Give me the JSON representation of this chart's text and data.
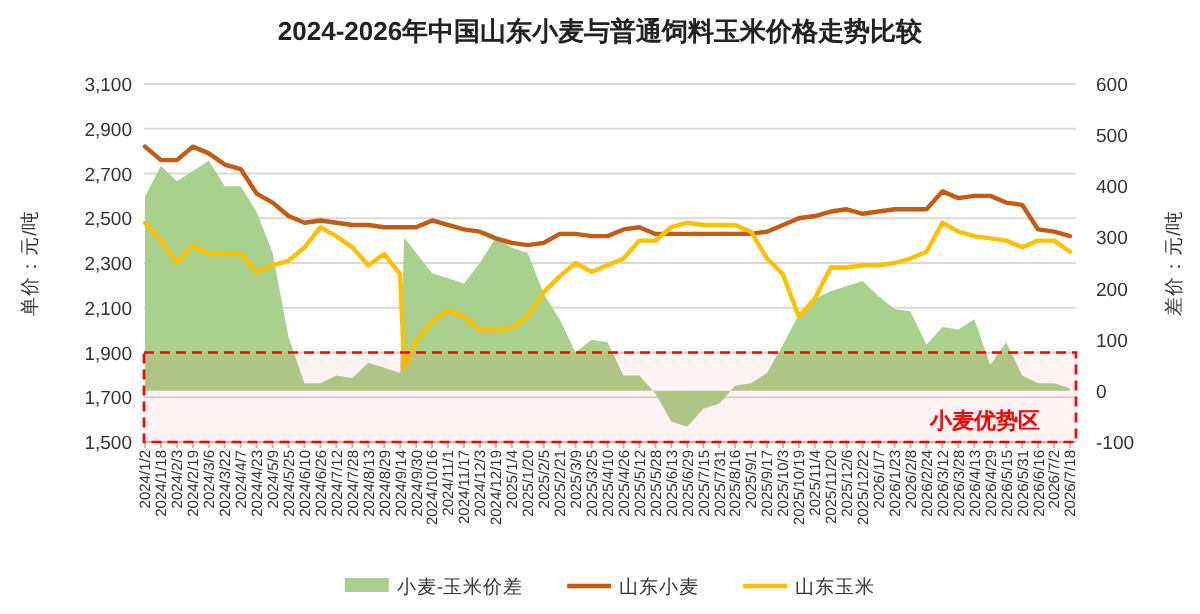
{
  "chart_data": {
    "type": "line",
    "title": "2024-2026年中国山东小麦与普通饲料玉米价格走势比较",
    "ylabel": "单价：元/吨",
    "y2label": "差价：元/吨",
    "xlim": [
      "2024-01-01",
      "2026-07-24"
    ],
    "ylim": [
      1500,
      3100
    ],
    "yticks": [
      {
        "value": 1500,
        "label": "1,500"
      },
      {
        "value": 1700,
        "label": "1,700"
      },
      {
        "value": 1900,
        "label": "1,900"
      },
      {
        "value": 2100,
        "label": "2,100"
      },
      {
        "value": 2300,
        "label": "2,300"
      },
      {
        "value": 2500,
        "label": "2,500"
      },
      {
        "value": 2700,
        "label": "2,700"
      },
      {
        "value": 2900,
        "label": "2,900"
      },
      {
        "value": 3100,
        "label": "3,100"
      }
    ],
    "y2lim": [
      -100,
      600
    ],
    "y2ticks": [
      -100,
      0,
      100,
      200,
      300,
      400,
      500,
      600
    ],
    "xticks": [
      {
        "value": "2024-01-02",
        "label": "2024/1/2"
      },
      {
        "value": "2024-01-18",
        "label": "2024/1/18"
      },
      {
        "value": "2024-02-03",
        "label": "2024/2/3"
      },
      {
        "value": "2024-02-19",
        "label": "2024/2/19"
      },
      {
        "value": "2024-03-06",
        "label": "2024/3/6"
      },
      {
        "value": "2024-03-22",
        "label": "2024/3/22"
      },
      {
        "value": "2024-04-07",
        "label": "2024/4/7"
      },
      {
        "value": "2024-04-23",
        "label": "2024/4/23"
      },
      {
        "value": "2024-05-09",
        "label": "2024/5/9"
      },
      {
        "value": "2024-05-25",
        "label": "2024/5/25"
      },
      {
        "value": "2024-06-10",
        "label": "2024/6/10"
      },
      {
        "value": "2024-06-26",
        "label": "2024/6/26"
      },
      {
        "value": "2024-07-12",
        "label": "2024/7/12"
      },
      {
        "value": "2024-07-28",
        "label": "2024/7/28"
      },
      {
        "value": "2024-08-13",
        "label": "2024/8/13"
      },
      {
        "value": "2024-08-29",
        "label": "2024/8/29"
      },
      {
        "value": "2024-09-14",
        "label": "2024/9/14"
      },
      {
        "value": "2024-09-30",
        "label": "2024/9/30"
      },
      {
        "value": "2024-10-16",
        "label": "2024/10/16"
      },
      {
        "value": "2024-11-01",
        "label": "2024/11/1"
      },
      {
        "value": "2024-11-17",
        "label": "2024/11/17"
      },
      {
        "value": "2024-12-03",
        "label": "2024/12/3"
      },
      {
        "value": "2024-12-19",
        "label": "2024/12/19"
      },
      {
        "value": "2025-01-04",
        "label": "2025/1/4"
      },
      {
        "value": "2025-01-20",
        "label": "2025/1/20"
      },
      {
        "value": "2025-02-05",
        "label": "2025/2/5"
      },
      {
        "value": "2025-02-21",
        "label": "2025/2/21"
      },
      {
        "value": "2025-03-09",
        "label": "2025/3/9"
      },
      {
        "value": "2025-03-25",
        "label": "2025/3/25"
      },
      {
        "value": "2025-04-10",
        "label": "2025/4/10"
      },
      {
        "value": "2025-04-26",
        "label": "2025/4/26"
      },
      {
        "value": "2025-05-12",
        "label": "2025/5/12"
      },
      {
        "value": "2025-05-28",
        "label": "2025/5/28"
      },
      {
        "value": "2025-06-13",
        "label": "2025/6/13"
      },
      {
        "value": "2025-06-29",
        "label": "2025/6/29"
      },
      {
        "value": "2025-07-15",
        "label": "2025/7/15"
      },
      {
        "value": "2025-07-31",
        "label": "2025/7/31"
      },
      {
        "value": "2025-08-16",
        "label": "2025/8/16"
      },
      {
        "value": "2025-09-01",
        "label": "2025/9/1"
      },
      {
        "value": "2025-09-17",
        "label": "2025/9/17"
      },
      {
        "value": "2025-10-03",
        "label": "2025/10/3"
      },
      {
        "value": "2025-10-19",
        "label": "2025/10/19"
      },
      {
        "value": "2025-11-04",
        "label": "2025/11/4"
      },
      {
        "value": "2025-11-20",
        "label": "2025/11/20"
      },
      {
        "value": "2025-12-06",
        "label": "2025/12/6"
      },
      {
        "value": "2025-12-22",
        "label": "2025/12/22"
      },
      {
        "value": "2026-01-07",
        "label": "2026/1/7"
      },
      {
        "value": "2026-01-23",
        "label": "2026/1/23"
      },
      {
        "value": "2026-02-08",
        "label": "2026/2/8"
      },
      {
        "value": "2026-02-24",
        "label": "2026/2/24"
      },
      {
        "value": "2026-03-12",
        "label": "2026/3/12"
      },
      {
        "value": "2026-03-28",
        "label": "2026/3/28"
      },
      {
        "value": "2026-04-13",
        "label": "2026/4/13"
      },
      {
        "value": "2026-04-29",
        "label": "2026/4/29"
      },
      {
        "value": "2026-05-15",
        "label": "2026/5/15"
      },
      {
        "value": "2026-05-31",
        "label": "2026/5/31"
      },
      {
        "value": "2026-06-16",
        "label": "2026/6/16"
      },
      {
        "value": "2026-07-02",
        "label": "2026/7/2"
      },
      {
        "value": "2026-07-18",
        "label": "2026/7/18"
      }
    ],
    "x": [
      "2024-01-02",
      "2024-01-18",
      "2024-02-03",
      "2024-02-19",
      "2024-03-06",
      "2024-03-22",
      "2024-04-07",
      "2024-04-23",
      "2024-05-09",
      "2024-05-25",
      "2024-06-10",
      "2024-06-26",
      "2024-07-12",
      "2024-07-28",
      "2024-08-13",
      "2024-08-29",
      "2024-09-14",
      "2024-09-18",
      "2024-09-30",
      "2024-10-16",
      "2024-11-01",
      "2024-11-17",
      "2024-12-03",
      "2024-12-19",
      "2025-01-04",
      "2025-01-20",
      "2025-02-05",
      "2025-02-21",
      "2025-03-09",
      "2025-03-25",
      "2025-04-10",
      "2025-04-26",
      "2025-05-12",
      "2025-05-28",
      "2025-06-13",
      "2025-06-29",
      "2025-07-15",
      "2025-07-31",
      "2025-08-16",
      "2025-09-01",
      "2025-09-17",
      "2025-10-03",
      "2025-10-19",
      "2025-11-04",
      "2025-11-20",
      "2025-12-06",
      "2025-12-22",
      "2026-01-07",
      "2026-01-23",
      "2026-02-08",
      "2026-02-24",
      "2026-03-12",
      "2026-03-28",
      "2026-04-13",
      "2026-04-29",
      "2026-05-15",
      "2026-05-31",
      "2026-06-16",
      "2026-07-02",
      "2026-07-18"
    ],
    "series": [
      {
        "name": "小麦-玉米价差",
        "type": "area",
        "axis": "y2",
        "color": "#a9d18e",
        "values": [
          380,
          440,
          410,
          430,
          450,
          400,
          400,
          350,
          270,
          105,
          15,
          15,
          30,
          25,
          55,
          45,
          35,
          300,
          270,
          230,
          220,
          210,
          250,
          300,
          280,
          270,
          190,
          140,
          75,
          100,
          95,
          30,
          30,
          -5,
          -60,
          -70,
          -35,
          -25,
          10,
          15,
          35,
          90,
          150,
          180,
          195,
          205,
          215,
          185,
          160,
          155,
          90,
          125,
          120,
          140,
          50,
          95,
          30,
          15,
          15,
          5
        ]
      },
      {
        "name": "山东小麦",
        "color": "#c55a11",
        "values": [
          2820,
          2760,
          2760,
          2820,
          2790,
          2740,
          2720,
          2610,
          2570,
          2510,
          2480,
          2490,
          2480,
          2470,
          2470,
          2460,
          2460,
          2460,
          2460,
          2490,
          2470,
          2450,
          2440,
          2410,
          2390,
          2380,
          2390,
          2430,
          2430,
          2420,
          2420,
          2450,
          2460,
          2430,
          2430,
          2430,
          2430,
          2430,
          2430,
          2430,
          2440,
          2470,
          2500,
          2510,
          2530,
          2540,
          2520,
          2530,
          2540,
          2540,
          2540,
          2620,
          2590,
          2600,
          2600,
          2570,
          2560,
          2450,
          2440,
          2420
        ]
      },
      {
        "name": "山东玉米",
        "color": "#ffc000",
        "values": [
          2480,
          2400,
          2300,
          2380,
          2340,
          2340,
          2340,
          2260,
          2290,
          2310,
          2370,
          2460,
          2420,
          2370,
          2290,
          2340,
          2250,
          1830,
          1950,
          2040,
          2090,
          2060,
          2000,
          2000,
          2010,
          2060,
          2170,
          2240,
          2300,
          2260,
          2290,
          2320,
          2400,
          2400,
          2460,
          2480,
          2470,
          2470,
          2470,
          2440,
          2320,
          2250,
          2060,
          2140,
          2280,
          2280,
          2290,
          2290,
          2300,
          2320,
          2350,
          2480,
          2440,
          2420,
          2410,
          2400,
          2370,
          2400,
          2400,
          2350
        ]
      }
    ],
    "bands": [
      {
        "axis": "y",
        "from": 1500,
        "to": 1900,
        "label": "小麦优势区",
        "color": "#ff0000"
      }
    ],
    "grid": "y",
    "legend": "bottom"
  }
}
